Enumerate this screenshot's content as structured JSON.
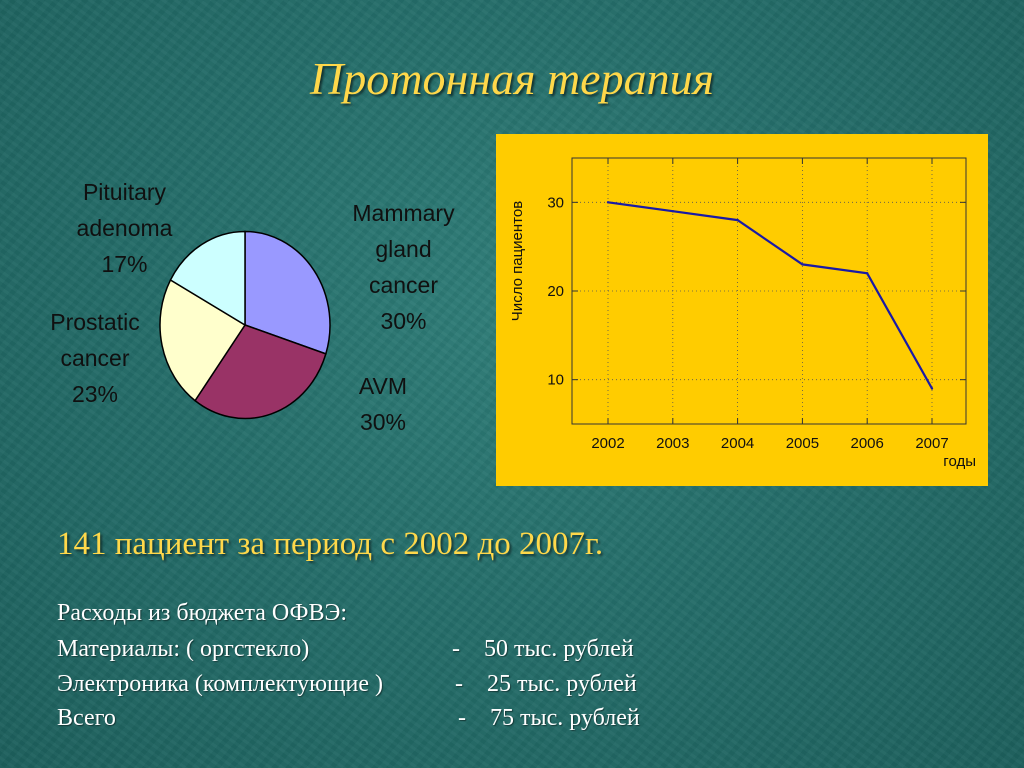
{
  "slide": {
    "title": "Протонная терапия",
    "summary": "141 пациент за период с 2002 до 2007г.",
    "budget": {
      "heading": "Расходы из бюджета ОФВЭ:",
      "rows": [
        {
          "label": "Материалы: ( оргстекло)",
          "dash": "-",
          "amount": "50 тыс. рублей"
        },
        {
          "label": "Электроника (комплектующие )",
          "dash": "-",
          "amount": "25 тыс. рублей"
        },
        {
          "label": "Всего",
          "dash": "-",
          "amount": "75 тыс. рублей"
        }
      ]
    }
  },
  "chart_data": [
    {
      "type": "pie",
      "slices": [
        {
          "label": "Mammary gland cancer",
          "percent": "30%",
          "value": 30,
          "color": "#9999ff"
        },
        {
          "label": "AVM",
          "percent": "30%",
          "value": 30,
          "color": "#993366"
        },
        {
          "label": "Prostatic cancer",
          "percent": "23%",
          "value": 23,
          "color": "#ffffcc"
        },
        {
          "label": "Pituitary adenoma",
          "percent": "17%",
          "value": 17,
          "color": "#ccffff"
        }
      ],
      "label_lines": {
        "mammary": [
          "Mammary",
          "gland",
          "cancer",
          "30%"
        ],
        "avm": [
          "AVM",
          "30%"
        ],
        "prostatic": [
          "Prostatic",
          "cancer",
          "23%"
        ],
        "pituitary": [
          "Pituitary",
          "adenoma",
          "17%"
        ]
      }
    },
    {
      "type": "line",
      "x": [
        2002,
        2003,
        2004,
        2005,
        2006,
        2007
      ],
      "series": [
        {
          "values": [
            30,
            29,
            28,
            23,
            22,
            9
          ],
          "color": "#1a1aa6"
        }
      ],
      "xlabel": "годы",
      "ylabel": "Число пациентов",
      "xticks": [
        "2002",
        "2003",
        "2004",
        "2005",
        "2006",
        "2007"
      ],
      "yticks": [
        "10",
        "20",
        "30"
      ],
      "xlim": [
        2002,
        2007
      ],
      "ylim": [
        5,
        35
      ],
      "grid": true,
      "background": "#ffcc00"
    }
  ]
}
